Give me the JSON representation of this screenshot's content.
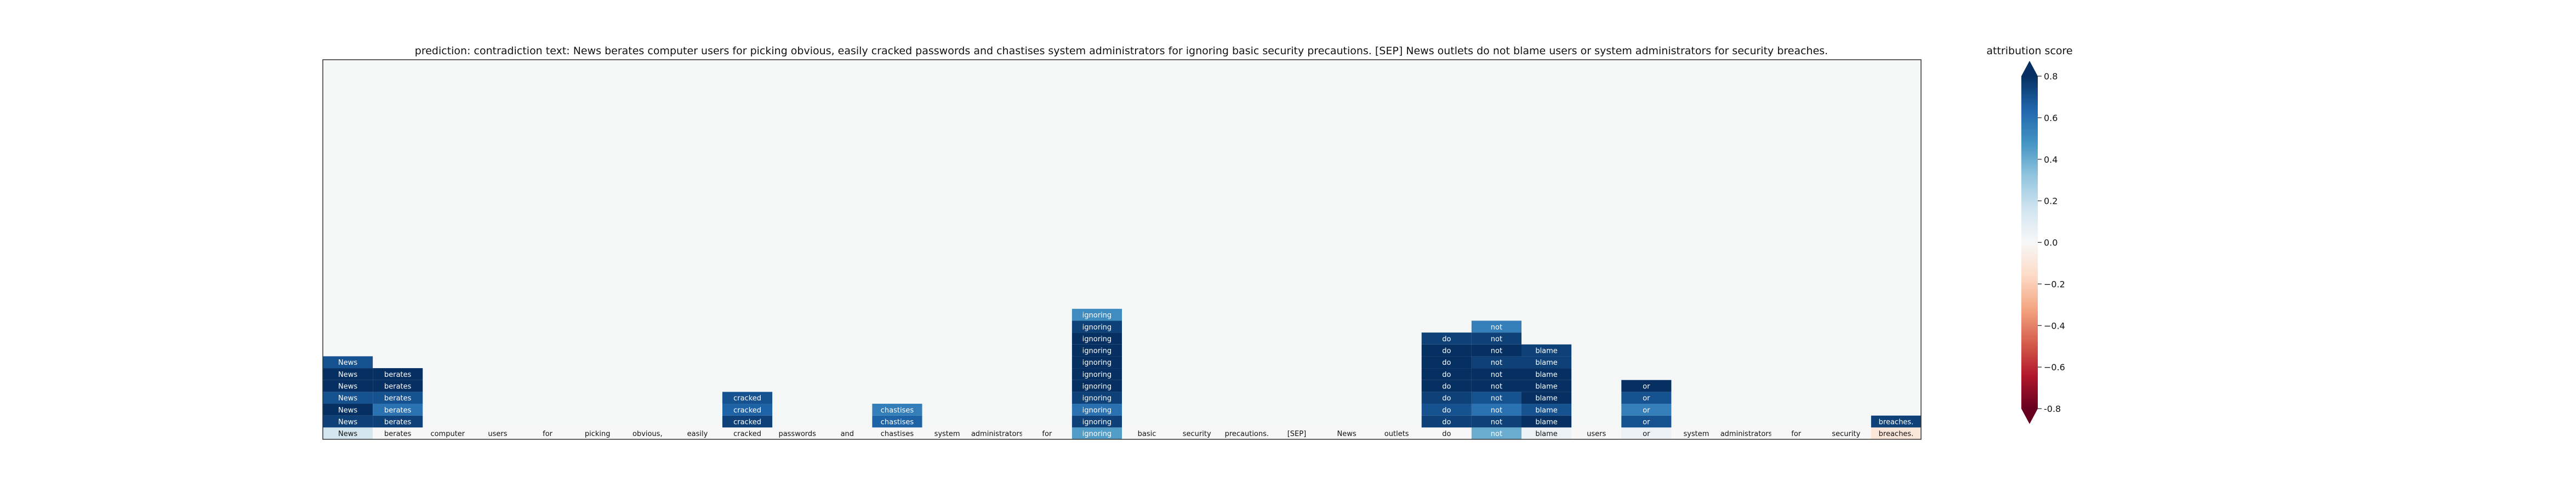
{
  "title": {
    "prediction_label": "prediction:",
    "prediction": "contradiction",
    "text_label": "text:",
    "text": "News berates computer users for picking obvious, easily cracked passwords and chastises system administrators for ignoring basic security precautions. [SEP] News outlets do not blame users or system administrators for security breaches."
  },
  "chart_data": {
    "type": "heatmap",
    "tokens": [
      "News",
      "berates",
      "computer",
      "users",
      "for",
      "picking",
      "obvious,",
      "easily",
      "cracked",
      "passwords",
      "and",
      "chastises",
      "system",
      "administrators",
      "for",
      "ignoring",
      "basic",
      "security",
      "precautions.",
      "[SEP]",
      "News",
      "outlets",
      "do",
      "not",
      "blame",
      "users",
      "or",
      "system",
      "administrators",
      "for",
      "security",
      "breaches."
    ],
    "base_row_scores": [
      0.15,
      0.0,
      0.0,
      0.0,
      0.0,
      0.0,
      0.0,
      0.0,
      0.0,
      0.0,
      0.0,
      0.0,
      0.0,
      0.0,
      0.0,
      0.45,
      0.0,
      0.0,
      0.0,
      0.0,
      0.0,
      0.0,
      0.0,
      0.4,
      0.05,
      0.0,
      0.05,
      0.0,
      0.0,
      0.0,
      0.0,
      -0.1
    ],
    "cells": [
      {
        "token": 0,
        "level": 1,
        "label": "News",
        "score": 0.75
      },
      {
        "token": 0,
        "level": 2,
        "label": "News",
        "score": 0.8
      },
      {
        "token": 0,
        "level": 3,
        "label": "News",
        "score": 0.7
      },
      {
        "token": 0,
        "level": 4,
        "label": "News",
        "score": 0.85
      },
      {
        "token": 0,
        "level": 5,
        "label": "News",
        "score": 0.8
      },
      {
        "token": 0,
        "level": 6,
        "label": "News",
        "score": 0.7
      },
      {
        "token": 1,
        "level": 1,
        "label": "berates",
        "score": 0.75
      },
      {
        "token": 1,
        "level": 2,
        "label": "berates",
        "score": 0.6
      },
      {
        "token": 1,
        "level": 3,
        "label": "berates",
        "score": 0.7
      },
      {
        "token": 1,
        "level": 4,
        "label": "berates",
        "score": 0.8
      },
      {
        "token": 1,
        "level": 5,
        "label": "berates",
        "score": 0.9
      },
      {
        "token": 8,
        "level": 1,
        "label": "cracked",
        "score": 0.75
      },
      {
        "token": 8,
        "level": 2,
        "label": "cracked",
        "score": 0.65
      },
      {
        "token": 8,
        "level": 3,
        "label": "cracked",
        "score": 0.7
      },
      {
        "token": 11,
        "level": 1,
        "label": "chastises",
        "score": 0.65
      },
      {
        "token": 11,
        "level": 2,
        "label": "chastises",
        "score": 0.55
      },
      {
        "token": 15,
        "level": 1,
        "label": "ignoring",
        "score": 0.75
      },
      {
        "token": 15,
        "level": 2,
        "label": "ignoring",
        "score": 0.6
      },
      {
        "token": 15,
        "level": 3,
        "label": "ignoring",
        "score": 0.75
      },
      {
        "token": 15,
        "level": 4,
        "label": "ignoring",
        "score": 0.85
      },
      {
        "token": 15,
        "level": 5,
        "label": "ignoring",
        "score": 0.9
      },
      {
        "token": 15,
        "level": 6,
        "label": "ignoring",
        "score": 0.8
      },
      {
        "token": 15,
        "level": 7,
        "label": "ignoring",
        "score": 0.8
      },
      {
        "token": 15,
        "level": 8,
        "label": "ignoring",
        "score": 0.85
      },
      {
        "token": 15,
        "level": 9,
        "label": "ignoring",
        "score": 0.75
      },
      {
        "token": 15,
        "level": 10,
        "label": "ignoring",
        "score": 0.5
      },
      {
        "token": 22,
        "level": 1,
        "label": "do",
        "score": 0.75
      },
      {
        "token": 22,
        "level": 2,
        "label": "do",
        "score": 0.7
      },
      {
        "token": 22,
        "level": 3,
        "label": "do",
        "score": 0.75
      },
      {
        "token": 22,
        "level": 4,
        "label": "do",
        "score": 0.85
      },
      {
        "token": 22,
        "level": 5,
        "label": "do",
        "score": 0.9
      },
      {
        "token": 22,
        "level": 6,
        "label": "do",
        "score": 0.8
      },
      {
        "token": 22,
        "level": 7,
        "label": "do",
        "score": 0.85
      },
      {
        "token": 22,
        "level": 8,
        "label": "do",
        "score": 0.75
      },
      {
        "token": 23,
        "level": 1,
        "label": "not",
        "score": 0.75
      },
      {
        "token": 23,
        "level": 2,
        "label": "not",
        "score": 0.6
      },
      {
        "token": 23,
        "level": 3,
        "label": "not",
        "score": 0.7
      },
      {
        "token": 23,
        "level": 4,
        "label": "not",
        "score": 0.8
      },
      {
        "token": 23,
        "level": 5,
        "label": "not",
        "score": 0.85
      },
      {
        "token": 23,
        "level": 6,
        "label": "not",
        "score": 0.75
      },
      {
        "token": 23,
        "level": 7,
        "label": "not",
        "score": 0.8
      },
      {
        "token": 23,
        "level": 8,
        "label": "not",
        "score": 0.75
      },
      {
        "token": 23,
        "level": 9,
        "label": "not",
        "score": 0.55
      },
      {
        "token": 24,
        "level": 1,
        "label": "blame",
        "score": 0.8
      },
      {
        "token": 24,
        "level": 2,
        "label": "blame",
        "score": 0.7
      },
      {
        "token": 24,
        "level": 3,
        "label": "blame",
        "score": 0.8
      },
      {
        "token": 24,
        "level": 4,
        "label": "blame",
        "score": 0.85
      },
      {
        "token": 24,
        "level": 5,
        "label": "blame",
        "score": 0.8
      },
      {
        "token": 24,
        "level": 6,
        "label": "blame",
        "score": 0.75
      },
      {
        "token": 24,
        "level": 7,
        "label": "blame",
        "score": 0.75
      },
      {
        "token": 26,
        "level": 1,
        "label": "or",
        "score": 0.7
      },
      {
        "token": 26,
        "level": 2,
        "label": "or",
        "score": 0.55
      },
      {
        "token": 26,
        "level": 3,
        "label": "or",
        "score": 0.7
      },
      {
        "token": 26,
        "level": 4,
        "label": "or",
        "score": 0.8
      },
      {
        "token": 31,
        "level": 1,
        "label": "breaches.",
        "score": 0.75
      }
    ],
    "levels": 32,
    "colorbar": {
      "label": "attribution score",
      "range": [
        -0.8,
        0.8
      ],
      "ticks": [
        "-0.8",
        "−0.6",
        "−0.4",
        "−0.2",
        "0.0",
        "0.2",
        "0.4",
        "0.6",
        "0.8"
      ],
      "tick_values": [
        -0.8,
        -0.6,
        -0.4,
        -0.2,
        0.0,
        0.2,
        0.4,
        0.6,
        0.8
      ],
      "colormap": "RdBu",
      "extend": "both"
    },
    "background_color": "#f5f7f7"
  }
}
